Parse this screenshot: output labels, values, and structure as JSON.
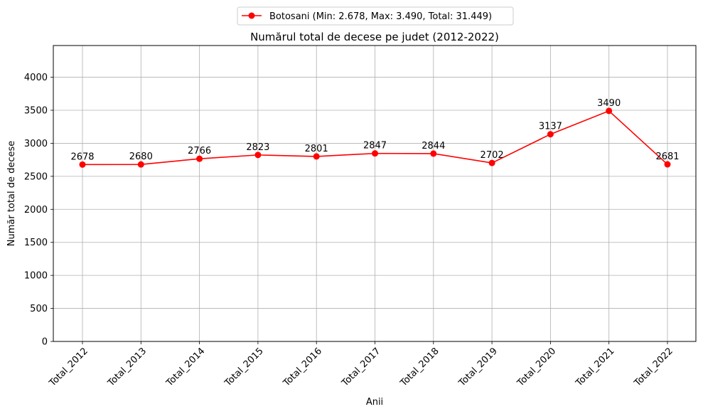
{
  "chart_data": {
    "type": "line",
    "title": "Numărul total de decese pe judet (2012-2022)",
    "xlabel": "Anii",
    "ylabel": "Număr total de decese",
    "categories": [
      "Total_2012",
      "Total_2013",
      "Total_2014",
      "Total_2015",
      "Total_2016",
      "Total_2017",
      "Total_2018",
      "Total_2019",
      "Total_2020",
      "Total_2021",
      "Total_2022"
    ],
    "series": [
      {
        "name": "Botosani (Min: 2.678, Max: 3.490, Total: 31.449)",
        "values": [
          2678,
          2680,
          2766,
          2823,
          2801,
          2847,
          2844,
          2702,
          3137,
          3490,
          2681
        ],
        "color": "#ff0000",
        "marker": "circle"
      }
    ],
    "data_labels": [
      "2678",
      "2680",
      "2766",
      "2823",
      "2801",
      "2847",
      "2844",
      "2702",
      "3137",
      "3490",
      "2681"
    ],
    "ylim": [
      0,
      4480
    ],
    "yticks": [
      "0",
      "500",
      "1000",
      "1500",
      "2000",
      "2500",
      "3000",
      "3500",
      "4000"
    ],
    "grid": true,
    "legend_position": "top-center",
    "x_tick_rotation_deg": 45
  }
}
